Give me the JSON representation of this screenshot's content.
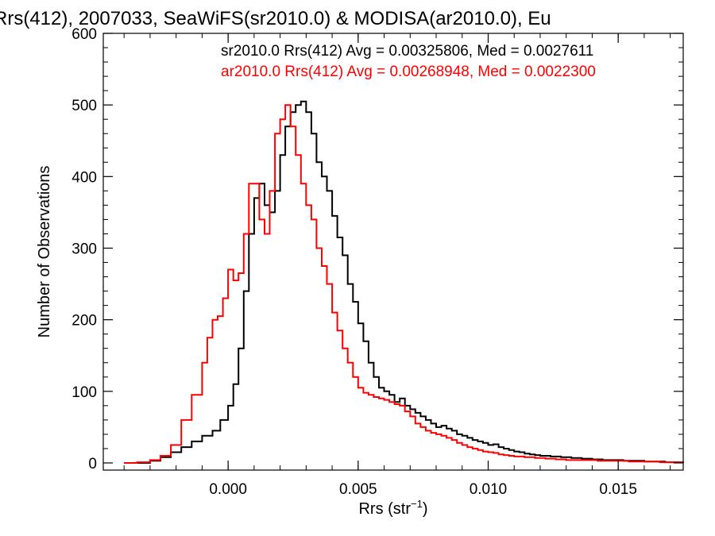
{
  "chart_data": {
    "type": "line",
    "title": "Rrs(412), 2007033, SeaWiFS(sr2010.0) & MODISA(ar2010.0), Eu",
    "xlabel_main": "Rrs (str",
    "xlabel_sup": "−1",
    "xlabel_close": ")",
    "ylabel": "Number of Observations",
    "xlim": [
      -0.0048,
      0.0175
    ],
    "ylim": [
      -10,
      600
    ],
    "x_ticks": [
      0.0,
      0.005,
      0.01,
      0.015
    ],
    "x_tick_labels": [
      "0.000",
      "0.005",
      "0.010",
      "0.015"
    ],
    "y_ticks": [
      0,
      100,
      200,
      300,
      400,
      500,
      600
    ],
    "y_tick_labels": [
      "0",
      "100",
      "200",
      "300",
      "400",
      "500",
      "600"
    ],
    "legend_placement": "top-right",
    "annotations": [
      "sr2010.0 Rrs(412) Avg = 0.00325806, Med = 0.0027611",
      "ar2010.0 Rrs(412) Avg = 0.00268948, Med = 0.0022300"
    ],
    "colors": {
      "series1": "#000000",
      "series2": "#ff0000"
    },
    "series": [
      {
        "color": "#000000",
        "points": [
          [
            -0.004,
            0
          ],
          [
            -0.0035,
            0
          ],
          [
            -0.003,
            3
          ],
          [
            -0.0026,
            8
          ],
          [
            -0.0022,
            15
          ],
          [
            -0.0018,
            22
          ],
          [
            -0.0014,
            30
          ],
          [
            -0.001,
            38
          ],
          [
            -0.0006,
            45
          ],
          [
            -0.0003,
            60
          ],
          [
            0.0,
            80
          ],
          [
            0.0002,
            110
          ],
          [
            0.0004,
            160
          ],
          [
            0.0006,
            240
          ],
          [
            0.0008,
            320
          ],
          [
            0.001,
            370
          ],
          [
            0.0012,
            390
          ],
          [
            0.0014,
            360
          ],
          [
            0.0016,
            350
          ],
          [
            0.0018,
            380
          ],
          [
            0.002,
            430
          ],
          [
            0.0022,
            470
          ],
          [
            0.0024,
            490
          ],
          [
            0.0026,
            500
          ],
          [
            0.0028,
            505
          ],
          [
            0.003,
            490
          ],
          [
            0.0032,
            460
          ],
          [
            0.0034,
            420
          ],
          [
            0.0036,
            400
          ],
          [
            0.0038,
            380
          ],
          [
            0.004,
            345
          ],
          [
            0.0042,
            315
          ],
          [
            0.0044,
            290
          ],
          [
            0.0046,
            250
          ],
          [
            0.0048,
            225
          ],
          [
            0.005,
            195
          ],
          [
            0.0052,
            170
          ],
          [
            0.0054,
            140
          ],
          [
            0.0056,
            120
          ],
          [
            0.0058,
            105
          ],
          [
            0.006,
            100
          ],
          [
            0.0062,
            95
          ],
          [
            0.0064,
            85
          ],
          [
            0.0066,
            90
          ],
          [
            0.0068,
            80
          ],
          [
            0.007,
            75
          ],
          [
            0.0072,
            70
          ],
          [
            0.0074,
            65
          ],
          [
            0.0076,
            60
          ],
          [
            0.0078,
            55
          ],
          [
            0.008,
            50
          ],
          [
            0.0082,
            52
          ],
          [
            0.0084,
            48
          ],
          [
            0.0086,
            45
          ],
          [
            0.0088,
            40
          ],
          [
            0.009,
            38
          ],
          [
            0.0092,
            35
          ],
          [
            0.0094,
            32
          ],
          [
            0.0096,
            30
          ],
          [
            0.0098,
            28
          ],
          [
            0.01,
            25
          ],
          [
            0.0102,
            26
          ],
          [
            0.0104,
            22
          ],
          [
            0.0106,
            20
          ],
          [
            0.0108,
            18
          ],
          [
            0.011,
            16
          ],
          [
            0.0112,
            15
          ],
          [
            0.0114,
            13
          ],
          [
            0.0116,
            12
          ],
          [
            0.0118,
            11
          ],
          [
            0.012,
            10
          ],
          [
            0.0124,
            9
          ],
          [
            0.0128,
            8
          ],
          [
            0.0132,
            7
          ],
          [
            0.0136,
            6
          ],
          [
            0.014,
            5
          ],
          [
            0.0144,
            4
          ],
          [
            0.0148,
            4
          ],
          [
            0.0152,
            3
          ],
          [
            0.0156,
            3
          ],
          [
            0.016,
            2
          ],
          [
            0.0164,
            2
          ],
          [
            0.0168,
            1
          ],
          [
            0.0172,
            1
          ],
          [
            0.0175,
            0
          ]
        ]
      },
      {
        "color": "#ff0000",
        "points": [
          [
            -0.004,
            0
          ],
          [
            -0.0035,
            1
          ],
          [
            -0.003,
            4
          ],
          [
            -0.0026,
            10
          ],
          [
            -0.0022,
            25
          ],
          [
            -0.0018,
            60
          ],
          [
            -0.0014,
            95
          ],
          [
            -0.001,
            140
          ],
          [
            -0.0008,
            175
          ],
          [
            -0.0006,
            200
          ],
          [
            -0.0004,
            205
          ],
          [
            -0.0002,
            230
          ],
          [
            0.0,
            270
          ],
          [
            0.0002,
            255
          ],
          [
            0.0004,
            265
          ],
          [
            0.0006,
            320
          ],
          [
            0.0008,
            390
          ],
          [
            0.001,
            390
          ],
          [
            0.0012,
            340
          ],
          [
            0.0014,
            320
          ],
          [
            0.0016,
            380
          ],
          [
            0.0018,
            460
          ],
          [
            0.002,
            480
          ],
          [
            0.0022,
            500
          ],
          [
            0.0024,
            470
          ],
          [
            0.0026,
            430
          ],
          [
            0.0028,
            390
          ],
          [
            0.003,
            360
          ],
          [
            0.0032,
            340
          ],
          [
            0.0034,
            300
          ],
          [
            0.0036,
            275
          ],
          [
            0.0038,
            250
          ],
          [
            0.004,
            210
          ],
          [
            0.0042,
            185
          ],
          [
            0.0044,
            160
          ],
          [
            0.0046,
            140
          ],
          [
            0.0048,
            120
          ],
          [
            0.005,
            105
          ],
          [
            0.0052,
            98
          ],
          [
            0.0054,
            95
          ],
          [
            0.0056,
            92
          ],
          [
            0.0058,
            90
          ],
          [
            0.006,
            88
          ],
          [
            0.0062,
            85
          ],
          [
            0.0064,
            82
          ],
          [
            0.0066,
            80
          ],
          [
            0.0068,
            72
          ],
          [
            0.007,
            65
          ],
          [
            0.0072,
            55
          ],
          [
            0.0074,
            50
          ],
          [
            0.0076,
            45
          ],
          [
            0.0078,
            42
          ],
          [
            0.008,
            40
          ],
          [
            0.0082,
            38
          ],
          [
            0.0084,
            35
          ],
          [
            0.0086,
            32
          ],
          [
            0.0088,
            28
          ],
          [
            0.009,
            25
          ],
          [
            0.0092,
            22
          ],
          [
            0.0094,
            20
          ],
          [
            0.0096,
            18
          ],
          [
            0.0098,
            16
          ],
          [
            0.01,
            15
          ],
          [
            0.0102,
            14
          ],
          [
            0.0104,
            12
          ],
          [
            0.0106,
            11
          ],
          [
            0.0108,
            10
          ],
          [
            0.011,
            9
          ],
          [
            0.0114,
            8
          ],
          [
            0.0118,
            7
          ],
          [
            0.0122,
            6
          ],
          [
            0.0126,
            5
          ],
          [
            0.013,
            4
          ],
          [
            0.0136,
            4
          ],
          [
            0.0142,
            3
          ],
          [
            0.0148,
            3
          ],
          [
            0.0154,
            2
          ],
          [
            0.016,
            2
          ],
          [
            0.0166,
            1
          ],
          [
            0.0172,
            1
          ],
          [
            0.0175,
            0
          ]
        ]
      }
    ]
  }
}
